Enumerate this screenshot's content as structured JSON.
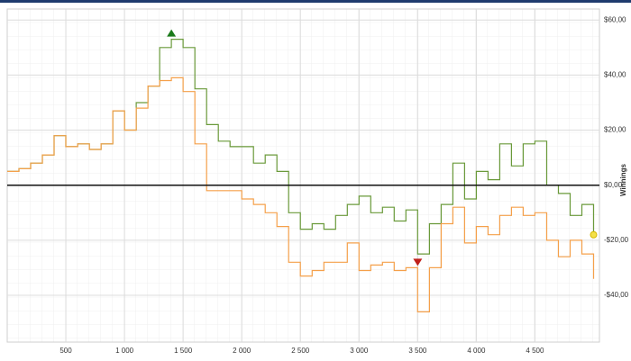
{
  "chart_data": {
    "type": "line",
    "y_label": "Winnings",
    "x": [
      0,
      100,
      200,
      300,
      400,
      500,
      600,
      700,
      800,
      900,
      1000,
      1100,
      1200,
      1300,
      1400,
      1500,
      1600,
      1700,
      1800,
      1900,
      2000,
      2100,
      2200,
      2300,
      2400,
      2500,
      2600,
      2700,
      2800,
      2900,
      3000,
      3100,
      3200,
      3300,
      3400,
      3500,
      3600,
      3700,
      3800,
      3900,
      4000,
      4100,
      4200,
      4300,
      4400,
      4500,
      4600,
      4700,
      4800,
      4900,
      5000
    ],
    "series": [
      {
        "color": "#6a9a3a",
        "values": [
          5,
          6,
          8,
          11,
          18,
          14,
          15,
          13,
          15,
          27,
          20,
          30,
          36,
          50,
          53,
          50,
          35,
          22,
          16,
          14,
          14,
          8,
          11,
          5,
          -10,
          -16,
          -14,
          -16,
          -11,
          -7,
          -4,
          -10,
          -8,
          -13,
          -9,
          -25,
          -14,
          -7,
          8,
          -5,
          5,
          2,
          15,
          7,
          15,
          16,
          0,
          -3,
          -11,
          -7,
          -18
        ]
      },
      {
        "color": "#f5a04a",
        "values": [
          5,
          6,
          8,
          11,
          18,
          14,
          15,
          13,
          15,
          27,
          20,
          28,
          36,
          38,
          39,
          34,
          15,
          -2,
          -2,
          -2,
          -5,
          -7,
          -10,
          -15,
          -28,
          -33,
          -31,
          -28,
          -28,
          -21,
          -31,
          -29,
          -28,
          -31,
          -30,
          -46,
          -30,
          -14,
          -8,
          -21,
          -15,
          -18,
          -11,
          -8,
          -11,
          -10,
          -20,
          -26,
          -20,
          -25,
          -34
        ]
      }
    ],
    "xlim": [
      0,
      5050
    ],
    "ylim": [
      -57,
      64
    ],
    "xticks": [
      500,
      {
        "value": 1000,
        "label": "1 000"
      },
      {
        "value": 1500,
        "label": "1 500"
      },
      {
        "value": 2000,
        "label": "2 000"
      },
      {
        "value": 2500,
        "label": "2 500"
      },
      {
        "value": 3000,
        "label": "3 000"
      },
      {
        "value": 3500,
        "label": "3 500"
      },
      {
        "value": 4000,
        "label": "4 000"
      },
      {
        "value": 4500,
        "label": "4 500"
      }
    ],
    "yticks": [
      {
        "value": 60,
        "label": "$60,00"
      },
      {
        "value": 40,
        "label": "$40,00"
      },
      {
        "value": 20,
        "label": "$20,00"
      },
      {
        "value": 0,
        "label": "$0,00"
      },
      {
        "value": -20,
        "label": "-$20,00"
      },
      {
        "value": -40,
        "label": "-$40,00"
      }
    ],
    "grid": true
  }
}
